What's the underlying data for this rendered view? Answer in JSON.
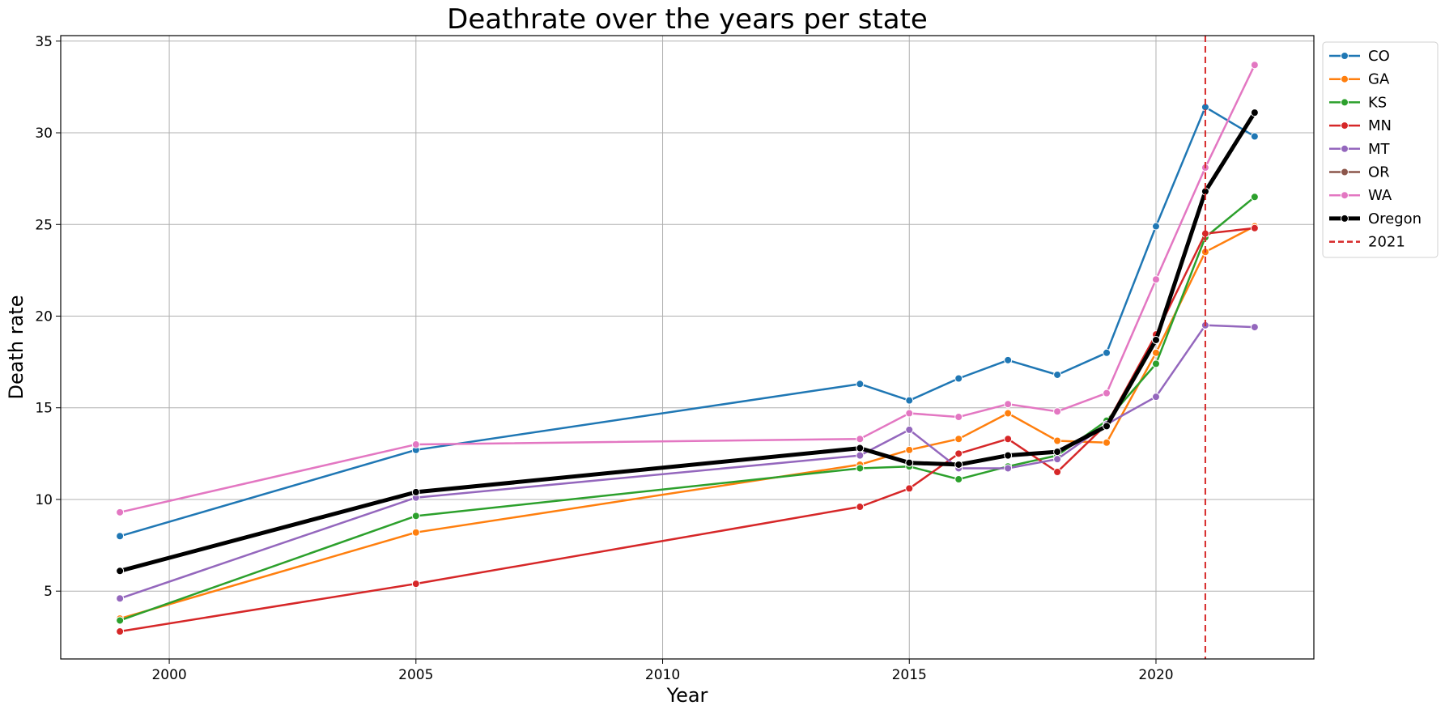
{
  "chart_data": {
    "type": "line",
    "title": "Deathrate over the years per state",
    "xlabel": "Year",
    "ylabel": "Death rate",
    "xlim": [
      1997.8,
      2023.2
    ],
    "ylim": [
      1.3,
      35.3
    ],
    "xticks": [
      2000,
      2005,
      2010,
      2015,
      2020
    ],
    "yticks": [
      5,
      10,
      15,
      20,
      25,
      30,
      35
    ],
    "grid": true,
    "legend_position": "outside-top-right",
    "x": [
      1999,
      2005,
      2014,
      2015,
      2016,
      2017,
      2018,
      2019,
      2020,
      2021,
      2022
    ],
    "series": [
      {
        "name": "CO",
        "color": "#1f77b4",
        "values": [
          8.0,
          12.7,
          16.3,
          15.4,
          16.6,
          17.6,
          16.8,
          18.0,
          24.9,
          31.4,
          29.8
        ]
      },
      {
        "name": "GA",
        "color": "#ff7f0e",
        "values": [
          3.5,
          8.2,
          11.9,
          12.7,
          13.3,
          14.7,
          13.2,
          13.1,
          18.0,
          23.5,
          24.9
        ]
      },
      {
        "name": "KS",
        "color": "#2ca02c",
        "values": [
          3.4,
          9.1,
          11.7,
          11.8,
          11.1,
          11.8,
          12.4,
          14.3,
          17.4,
          24.3,
          26.5
        ]
      },
      {
        "name": "MN",
        "color": "#d62728",
        "values": [
          2.8,
          5.4,
          9.6,
          10.6,
          12.5,
          13.3,
          11.5,
          14.1,
          19.0,
          24.5,
          24.8
        ]
      },
      {
        "name": "MT",
        "color": "#9467bd",
        "values": [
          4.6,
          10.1,
          12.4,
          13.8,
          11.7,
          11.7,
          12.2,
          14.1,
          15.6,
          19.5,
          19.4
        ]
      },
      {
        "name": "OR",
        "color": "#8c564b",
        "values": [
          6.1,
          10.4,
          12.8,
          12.0,
          11.9,
          12.4,
          12.6,
          14.0,
          18.7,
          26.8,
          31.1
        ]
      },
      {
        "name": "WA",
        "color": "#e377c2",
        "values": [
          9.3,
          13.0,
          13.3,
          14.7,
          14.5,
          15.2,
          14.8,
          15.8,
          22.0,
          28.1,
          33.7
        ]
      },
      {
        "name": "Oregon",
        "color": "#000000",
        "bold": true,
        "values": [
          6.1,
          10.4,
          12.8,
          12.0,
          11.9,
          12.4,
          12.6,
          14.0,
          18.7,
          26.8,
          31.1
        ]
      }
    ],
    "vline": {
      "name": "2021",
      "x": 2021,
      "color": "#d62728",
      "style": "dashed"
    }
  }
}
